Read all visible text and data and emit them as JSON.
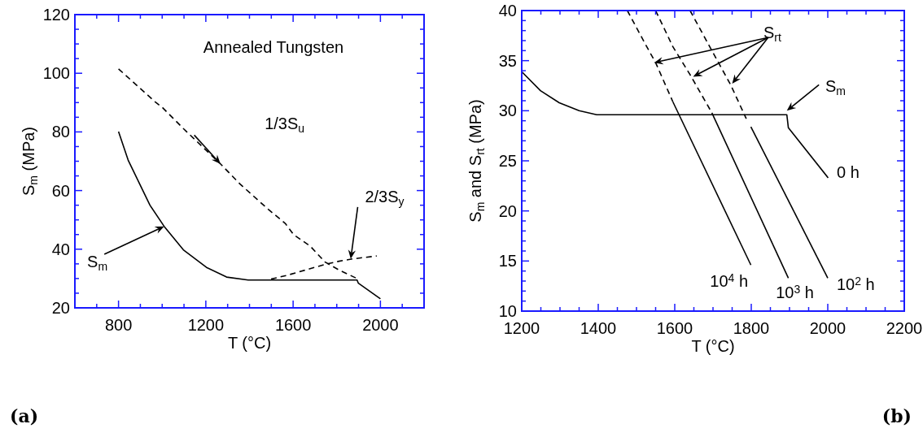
{
  "chart_data": [
    {
      "type": "line",
      "ylabel": "S$_{m}$ (MPa)",
      "xlabel": "T (°C)",
      "xlim": [
        600,
        2200
      ],
      "ylim": [
        20,
        120
      ],
      "xticks": [
        {
          "value": 700,
          "label": null
        },
        800,
        {
          "value": 900,
          "label": null
        },
        {
          "value": 1000,
          "label": null
        },
        {
          "value": 1100,
          "label": null
        },
        1200,
        {
          "value": 1300,
          "label": null
        },
        {
          "value": 1400,
          "label": null
        },
        {
          "value": 1500,
          "label": null
        },
        1600,
        {
          "value": 1700,
          "label": null
        },
        {
          "value": 1800,
          "label": null
        },
        {
          "value": 1900,
          "label": null
        },
        2000,
        {
          "value": 2100,
          "label": null
        }
      ],
      "yticks": [
        20,
        {
          "value": 25,
          "label": null
        },
        {
          "value": 30,
          "label": null
        },
        {
          "value": 35,
          "label": null
        },
        40,
        {
          "value": 45,
          "label": null
        },
        {
          "value": 50,
          "label": null
        },
        {
          "value": 55,
          "label": null
        },
        60,
        {
          "value": 65,
          "label": null
        },
        {
          "value": 70,
          "label": null
        },
        {
          "value": 75,
          "label": null
        },
        80,
        {
          "value": 85,
          "label": null
        },
        {
          "value": 90,
          "label": null
        },
        {
          "value": 95,
          "label": null
        },
        100,
        {
          "value": 105,
          "label": null
        },
        {
          "value": 110,
          "label": null
        },
        {
          "value": 115,
          "label": null
        },
        120
      ],
      "series": [
        {
          "color": "#000000",
          "line_style": "solid",
          "x": [
            800,
            844,
            944,
            1009,
            1097,
            1203,
            1295,
            1394,
            1893,
            1899,
            2000
          ],
          "values": [
            80.1,
            70.4,
            55,
            47.8,
            39.8,
            33.8,
            30.5,
            29.5,
            29.5,
            28.4,
            23.1
          ]
        },
        {
          "color": "#000000",
          "line_style": "dashed",
          "x": [
            800,
            970,
            1000,
            1099,
            1267,
            1357,
            1486,
            1564,
            1602,
            1679,
            1745,
            1810,
            1893
          ],
          "values": [
            101.5,
            90.1,
            88.4,
            81,
            69.1,
            62.2,
            53.6,
            48.8,
            45,
            41,
            35.7,
            32.9,
            30
          ]
        },
        {
          "color": "#000000",
          "line_style": "dashed",
          "x": [
            1499,
            1577,
            1745,
            1810,
            1874,
            1983
          ],
          "values": [
            29.8,
            31.2,
            34.8,
            35.9,
            36.7,
            37.7
          ]
        }
      ],
      "annotations": [
        "Annealed Tungsten",
        "1/3S$_{u}$",
        "2/3S$_{y}$",
        "S$_{m}$",
        "(a)"
      ]
    },
    {
      "type": "line",
      "ylabel": "S$_{m}$ and S$_{rt}$ (MPa)",
      "xlabel": "T (°C)",
      "xlim": [
        1200,
        2200
      ],
      "ylim": [
        10,
        40
      ],
      "xticks": [
        1200,
        {
          "value": 1250,
          "label": null
        },
        {
          "value": 1300,
          "label": null
        },
        {
          "value": 1350,
          "label": null
        },
        1400,
        {
          "value": 1450,
          "label": null
        },
        {
          "value": 1500,
          "label": null
        },
        {
          "value": 1550,
          "label": null
        },
        1600,
        {
          "value": 1650,
          "label": null
        },
        {
          "value": 1700,
          "label": null
        },
        {
          "value": 1750,
          "label": null
        },
        1800,
        {
          "value": 1850,
          "label": null
        },
        {
          "value": 1900,
          "label": null
        },
        {
          "value": 1950,
          "label": null
        },
        2000,
        {
          "value": 2050,
          "label": null
        },
        {
          "value": 2100,
          "label": null
        },
        {
          "value": 2150,
          "label": null
        },
        2200
      ],
      "yticks": [
        10,
        {
          "value": 11,
          "label": null
        },
        {
          "value": 12,
          "label": null
        },
        {
          "value": 13,
          "label": null
        },
        {
          "value": 14,
          "label": null
        },
        15,
        {
          "value": 16,
          "label": null
        },
        {
          "value": 17,
          "label": null
        },
        {
          "value": 18,
          "label": null
        },
        {
          "value": 19,
          "label": null
        },
        20,
        {
          "value": 21,
          "label": null
        },
        {
          "value": 22,
          "label": null
        },
        {
          "value": 23,
          "label": null
        },
        {
          "value": 24,
          "label": null
        },
        25,
        {
          "value": 26,
          "label": null
        },
        {
          "value": 27,
          "label": null
        },
        {
          "value": 28,
          "label": null
        },
        {
          "value": 29,
          "label": null
        },
        30,
        {
          "value": 31,
          "label": null
        },
        {
          "value": 32,
          "label": null
        },
        {
          "value": 33,
          "label": null
        },
        {
          "value": 34,
          "label": null
        },
        35,
        {
          "value": 36,
          "label": null
        },
        {
          "value": 37,
          "label": null
        },
        {
          "value": 38,
          "label": null
        },
        {
          "value": 39,
          "label": null
        },
        40
      ],
      "series": [
        {
          "color": "#000000",
          "line_style": "solid",
          "x": [
            1200,
            1249,
            1298,
            1350,
            1396,
            1893,
            1897,
            2001
          ],
          "values": [
            33.9,
            32,
            30.8,
            30,
            29.6,
            29.6,
            28.3,
            23.3
          ]
        },
        {
          "color": "#000000",
          "line_style": "dashed",
          "x": [
            1476,
            1521,
            1550,
            1595
          ],
          "values": [
            40,
            36.8,
            34.8,
            30.9
          ]
        },
        {
          "color": "#000000",
          "line_style": "solid",
          "x": [
            1595,
            1799
          ],
          "values": [
            30.9,
            14.6
          ]
        },
        {
          "color": "#000000",
          "line_style": "dashed",
          "x": [
            1550,
            1595,
            1640,
            1697
          ],
          "values": [
            40,
            36.4,
            33.6,
            29.8
          ]
        },
        {
          "color": "#000000",
          "line_style": "solid",
          "x": [
            1697,
            1897
          ],
          "values": [
            29.8,
            13.3
          ]
        },
        {
          "color": "#000000",
          "line_style": "dashed",
          "x": [
            1640,
            1697,
            1746,
            1787
          ],
          "values": [
            40,
            36,
            32.6,
            29.2
          ]
        },
        {
          "color": "#000000",
          "line_style": "solid",
          "x": [
            1799,
            2000
          ],
          "values": [
            28.4,
            13.3
          ]
        }
      ],
      "annotations": [
        "S$_{rt}$",
        "S$_{m}$",
        "0 h",
        "10$^{4}$ h",
        "10$^{3}$ h",
        "10$^{2}$ h",
        "(b)"
      ]
    }
  ]
}
